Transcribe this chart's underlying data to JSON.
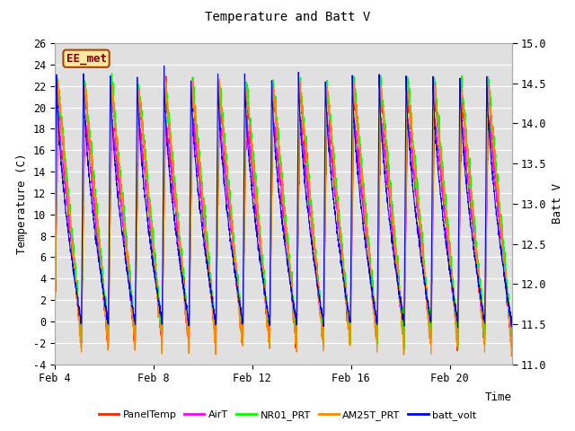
{
  "title": "Temperature and Batt V",
  "xlabel": "Time",
  "ylabel_left": "Temperature (C)",
  "ylabel_right": "Batt V",
  "annotation": "EE_met",
  "ylim_left": [
    -4,
    26
  ],
  "ylim_right": [
    11.0,
    15.0
  ],
  "yticks_left": [
    -4,
    -2,
    0,
    2,
    4,
    6,
    8,
    10,
    12,
    14,
    16,
    18,
    20,
    22,
    24,
    26
  ],
  "yticks_right": [
    11.0,
    11.5,
    12.0,
    12.5,
    13.0,
    13.5,
    14.0,
    14.5,
    15.0
  ],
  "xtick_positions": [
    0,
    4,
    8,
    12,
    16
  ],
  "xtick_labels": [
    "Feb 4",
    "Feb 8",
    "Feb 12",
    "Feb 16",
    "Feb 20"
  ],
  "legend_entries": [
    "PanelTemp",
    "AirT",
    "NR01_PRT",
    "AM25T_PRT",
    "batt_volt"
  ],
  "legend_colors": [
    "#ff2200",
    "#ff00ff",
    "#00ff00",
    "#ff8800",
    "#0000ff"
  ],
  "background_color": "#e0e0e0",
  "grid_color": "#ffffff",
  "xlim": [
    0,
    18.5
  ]
}
